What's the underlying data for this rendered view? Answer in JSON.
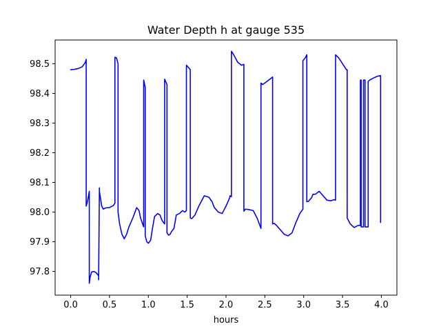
{
  "chart_data": {
    "type": "line",
    "title": "Water Depth h at gauge 535",
    "xlabel": "hours",
    "ylabel": "",
    "xlim": [
      -0.2,
      4.2
    ],
    "ylim": [
      97.72,
      98.58
    ],
    "xticks": [
      0.0,
      0.5,
      1.0,
      1.5,
      2.0,
      2.5,
      3.0,
      3.5,
      4.0
    ],
    "xtick_labels": [
      "0.0",
      "0.5",
      "1.0",
      "1.5",
      "2.0",
      "2.5",
      "3.0",
      "3.5",
      "4.0"
    ],
    "yticks": [
      97.8,
      97.9,
      98.0,
      98.1,
      98.2,
      98.3,
      98.4,
      98.5
    ],
    "ytick_labels": [
      "97.8",
      "97.9",
      "98.0",
      "98.1",
      "98.2",
      "98.3",
      "98.4",
      "98.5"
    ],
    "grid": false,
    "series": [
      {
        "color": "#0000ff",
        "x": [
          0.0,
          0.05,
          0.1,
          0.15,
          0.19,
          0.2,
          0.2,
          0.22,
          0.24,
          0.24,
          0.25,
          0.27,
          0.3,
          0.33,
          0.36,
          0.36,
          0.37,
          0.37,
          0.4,
          0.42,
          0.45,
          0.5,
          0.55,
          0.57,
          0.57,
          0.59,
          0.61,
          0.61,
          0.63,
          0.66,
          0.69,
          0.72,
          0.75,
          0.8,
          0.85,
          0.88,
          0.9,
          0.94,
          0.94,
          0.96,
          0.96,
          0.98,
          1.0,
          1.03,
          1.05,
          1.08,
          1.12,
          1.15,
          1.18,
          1.21,
          1.21,
          1.24,
          1.24,
          1.26,
          1.28,
          1.3,
          1.33,
          1.36,
          1.4,
          1.44,
          1.47,
          1.49,
          1.49,
          1.54,
          1.54,
          1.56,
          1.6,
          1.65,
          1.72,
          1.78,
          1.82,
          1.85,
          1.9,
          1.95,
          2.0,
          2.05,
          2.05,
          2.07,
          2.07,
          2.1,
          2.15,
          2.2,
          2.23,
          2.23,
          2.25,
          2.3,
          2.35,
          2.4,
          2.45,
          2.45,
          2.47,
          2.5,
          2.55,
          2.6,
          2.6,
          2.62,
          2.65,
          2.7,
          2.75,
          2.8,
          2.85,
          2.9,
          2.95,
          2.99,
          2.99,
          3.02,
          3.04,
          3.04,
          3.06,
          3.1,
          3.12,
          3.15,
          3.2,
          3.25,
          3.3,
          3.35,
          3.39,
          3.41,
          3.41,
          3.45,
          3.5,
          3.55,
          3.56,
          3.56,
          3.6,
          3.65,
          3.7,
          3.73,
          3.73,
          3.74,
          3.74,
          3.77,
          3.77,
          3.79,
          3.79,
          3.83,
          3.83,
          3.85,
          3.9,
          3.95,
          3.99,
          3.99
        ],
        "y": [
          98.48,
          98.481,
          98.484,
          98.49,
          98.505,
          98.515,
          98.02,
          98.04,
          98.07,
          97.76,
          97.78,
          97.798,
          97.8,
          97.795,
          97.785,
          97.772,
          98.082,
          98.07,
          98.02,
          98.01,
          98.014,
          98.015,
          98.022,
          98.03,
          98.522,
          98.52,
          98.5,
          98.0,
          97.96,
          97.925,
          97.91,
          97.925,
          97.95,
          97.98,
          98.015,
          98.005,
          97.98,
          97.95,
          98.445,
          98.42,
          97.92,
          97.9,
          97.895,
          97.905,
          97.94,
          97.985,
          97.995,
          97.99,
          97.97,
          97.96,
          98.448,
          98.43,
          97.93,
          97.922,
          97.925,
          97.935,
          97.945,
          97.99,
          97.995,
          98.005,
          98.0,
          98.005,
          98.495,
          98.48,
          97.98,
          97.978,
          97.99,
          98.02,
          98.055,
          98.05,
          98.035,
          98.015,
          98.0,
          97.995,
          98.02,
          98.05,
          98.055,
          98.052,
          98.542,
          98.53,
          98.505,
          98.495,
          98.498,
          98.003,
          98.01,
          98.008,
          98.005,
          97.98,
          97.945,
          98.435,
          98.43,
          98.435,
          98.445,
          98.455,
          97.96,
          97.962,
          97.955,
          97.94,
          97.925,
          97.92,
          97.93,
          97.965,
          97.995,
          98.01,
          98.51,
          98.52,
          98.53,
          98.035,
          98.036,
          98.048,
          98.06,
          98.06,
          98.07,
          98.055,
          98.04,
          98.038,
          98.042,
          98.04,
          98.53,
          98.52,
          98.5,
          98.48,
          98.48,
          97.98,
          97.96,
          97.948,
          97.955,
          97.955,
          98.445,
          98.445,
          97.95,
          97.95,
          98.445,
          98.445,
          97.95,
          97.95,
          98.44,
          98.445,
          98.452,
          98.458,
          98.46,
          97.965
        ]
      }
    ]
  }
}
